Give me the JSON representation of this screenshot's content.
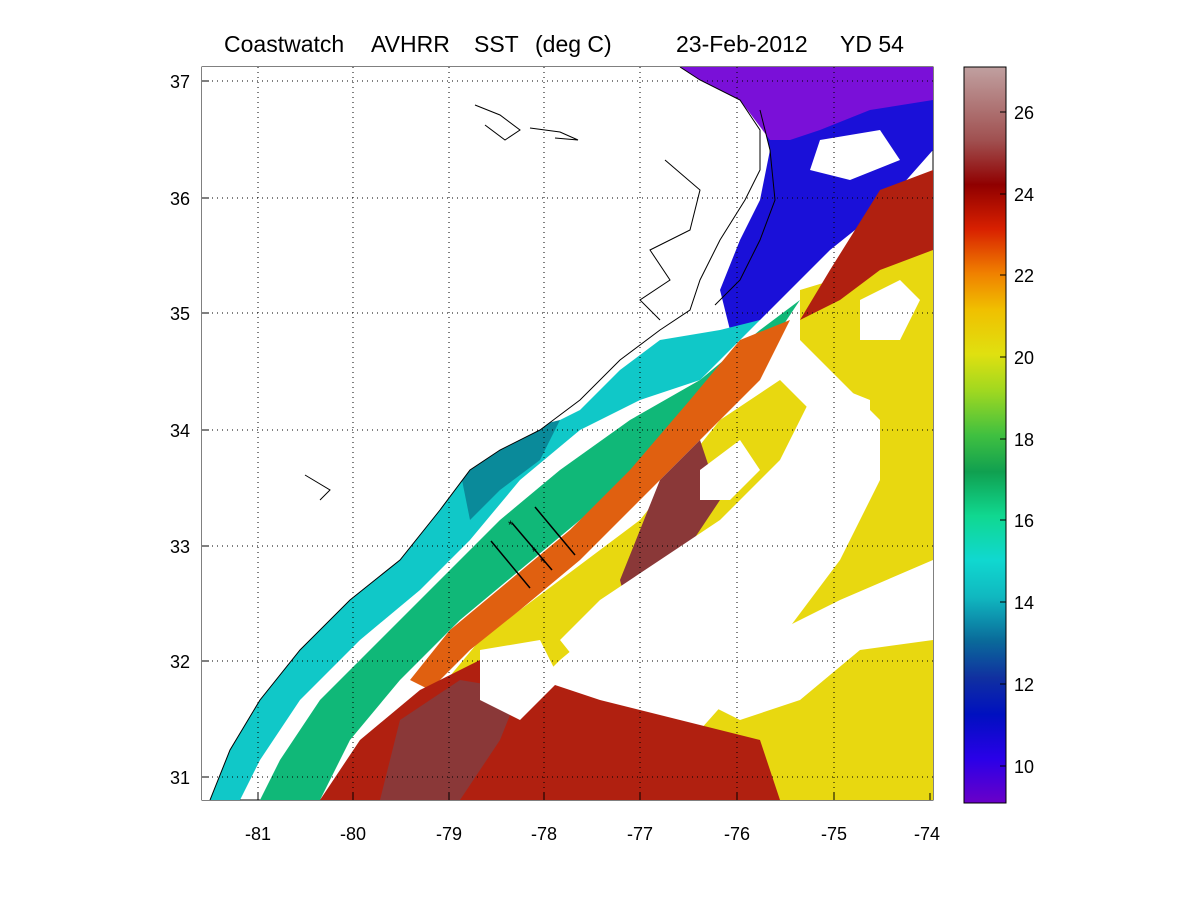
{
  "header": {
    "product": "Coastwatch",
    "sensor": "AVHRR",
    "variable": "SST",
    "units": "(deg C)",
    "date": "23-Feb-2012",
    "yearday": "YD 54"
  },
  "map": {
    "lon_ticks": [
      "-81",
      "-80",
      "-79",
      "-78",
      "-77",
      "-76",
      "-75",
      "-74"
    ],
    "lat_ticks": [
      "37",
      "36",
      "35",
      "34",
      "33",
      "32",
      "31"
    ],
    "lon_range": [
      -81.6,
      -74
    ],
    "lat_range": [
      30.8,
      37.1
    ],
    "grid": "dotted"
  },
  "colorbar": {
    "ticks": [
      "26",
      "24",
      "22",
      "20",
      "18",
      "16",
      "14",
      "12",
      "10"
    ],
    "range": [
      9,
      27.1
    ],
    "colors": [
      "#6a00c8",
      "#2a00e8",
      "#0010c0",
      "#1030a0",
      "#0a6a9a",
      "#10b8c0",
      "#10d8d0",
      "#10d890",
      "#10a050",
      "#40c040",
      "#a0d820",
      "#e0e010",
      "#f0c000",
      "#f08000",
      "#d82000",
      "#900000",
      "#a05050",
      "#c0a0a0"
    ]
  },
  "colors": {
    "cold": "#1a10d8",
    "cool": "#10c8c8",
    "mid": "#10b878",
    "warm": "#e8d810",
    "hot": "#e06010",
    "gulfstream": "#b02010",
    "core": "#8a3838"
  }
}
